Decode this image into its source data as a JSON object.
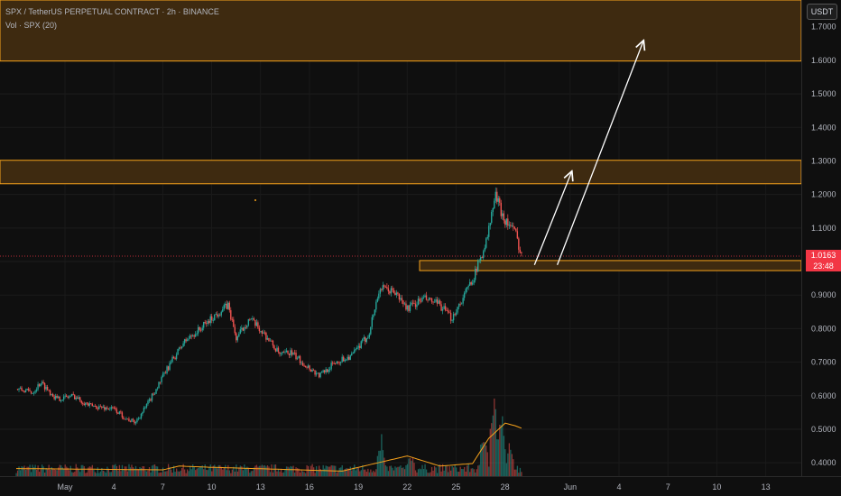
{
  "header": {
    "symbol_line": "SPX / TetherUS PERPETUAL CONTRACT · 2h · BINANCE",
    "volume_line": "Vol · SPX (20)"
  },
  "currency_label": "USDT",
  "last_price": {
    "value": "1.0163",
    "countdown": "23:48"
  },
  "colors": {
    "background": "#0f0f0f",
    "up": "#26a69a",
    "down": "#ef5350",
    "zone_fill": "#3e2a10",
    "zone_border": "#f7a21b",
    "volume_ma": "#f7a21b",
    "last_price": "#f23645",
    "arrow": "#ffffff"
  },
  "chart_data": {
    "type": "candlestick",
    "x_tick_labels": [
      "May",
      "4",
      "7",
      "10",
      "13",
      "16",
      "19",
      "22",
      "25",
      "28",
      "Jun",
      "4",
      "7",
      "10",
      "13"
    ],
    "y_tick_labels": [
      "0.4000",
      "0.5000",
      "0.6000",
      "0.7000",
      "0.8000",
      "0.9000",
      "1.0000",
      "1.1000",
      "1.2000",
      "1.3000",
      "1.4000",
      "1.5000",
      "1.6000",
      "1.7000"
    ],
    "y_range": [
      0.36,
      1.78
    ],
    "price_path": [
      {
        "day": 0,
        "price": 0.62
      },
      {
        "day": 1,
        "price": 0.61
      },
      {
        "day": 1.5,
        "price": 0.64
      },
      {
        "day": 2.5,
        "price": 0.59
      },
      {
        "day": 3.5,
        "price": 0.6
      },
      {
        "day": 4.5,
        "price": 0.57
      },
      {
        "day": 6,
        "price": 0.56
      },
      {
        "day": 6.8,
        "price": 0.53
      },
      {
        "day": 7.3,
        "price": 0.52
      },
      {
        "day": 8,
        "price": 0.57
      },
      {
        "day": 9.5,
        "price": 0.7
      },
      {
        "day": 10.3,
        "price": 0.76
      },
      {
        "day": 11.3,
        "price": 0.8
      },
      {
        "day": 12.2,
        "price": 0.84
      },
      {
        "day": 13.0,
        "price": 0.87
      },
      {
        "day": 13.5,
        "price": 0.77
      },
      {
        "day": 14.3,
        "price": 0.83
      },
      {
        "day": 15.3,
        "price": 0.78
      },
      {
        "day": 16.2,
        "price": 0.72
      },
      {
        "day": 16.8,
        "price": 0.73
      },
      {
        "day": 17.8,
        "price": 0.69
      },
      {
        "day": 18.6,
        "price": 0.66
      },
      {
        "day": 19.6,
        "price": 0.7
      },
      {
        "day": 20.6,
        "price": 0.72
      },
      {
        "day": 21.6,
        "price": 0.78
      },
      {
        "day": 22.3,
        "price": 0.92
      },
      {
        "day": 23.2,
        "price": 0.91
      },
      {
        "day": 24.0,
        "price": 0.86
      },
      {
        "day": 25.0,
        "price": 0.89
      },
      {
        "day": 26.0,
        "price": 0.87
      },
      {
        "day": 26.7,
        "price": 0.83
      },
      {
        "day": 27.5,
        "price": 0.9
      },
      {
        "day": 28.2,
        "price": 0.97
      },
      {
        "day": 28.9,
        "price": 1.07
      },
      {
        "day": 29.4,
        "price": 1.2
      },
      {
        "day": 29.9,
        "price": 1.13
      },
      {
        "day": 30.6,
        "price": 1.09
      },
      {
        "day": 31.0,
        "price": 1.02
      }
    ],
    "volume_range": [
      0,
      0.95
    ],
    "volume": {
      "base": 0.06,
      "spikes": [
        {
          "day": 22.4,
          "value": 0.36
        },
        {
          "day": 24.2,
          "value": 0.22
        },
        {
          "day": 28.7,
          "value": 0.48
        },
        {
          "day": 29.3,
          "value": 0.7
        },
        {
          "day": 29.8,
          "value": 0.58
        },
        {
          "day": 30.3,
          "value": 0.3
        }
      ]
    },
    "volume_ma_path": [
      {
        "day": 0,
        "value": 0.06
      },
      {
        "day": 9,
        "value": 0.05
      },
      {
        "day": 10,
        "value": 0.08
      },
      {
        "day": 12,
        "value": 0.07
      },
      {
        "day": 20,
        "value": 0.04
      },
      {
        "day": 22,
        "value": 0.1
      },
      {
        "day": 24,
        "value": 0.16
      },
      {
        "day": 26,
        "value": 0.08
      },
      {
        "day": 28,
        "value": 0.1
      },
      {
        "day": 29,
        "value": 0.3
      },
      {
        "day": 30,
        "value": 0.42
      },
      {
        "day": 30.6,
        "value": 0.4
      },
      {
        "day": 31,
        "value": 0.38
      }
    ],
    "zones": [
      {
        "low": 1.598,
        "high": 1.78
      },
      {
        "low": 1.232,
        "high": 1.302
      },
      {
        "low": 0.973,
        "high": 1.003
      }
    ],
    "arrows": [
      {
        "from": {
          "day": 31.8,
          "price": 0.99
        },
        "to": {
          "day": 34.1,
          "price": 1.27
        }
      },
      {
        "from": {
          "day": 33.2,
          "price": 0.99
        },
        "to": {
          "day": 38.5,
          "price": 1.66
        }
      }
    ],
    "last_price_line": 1.0163
  }
}
